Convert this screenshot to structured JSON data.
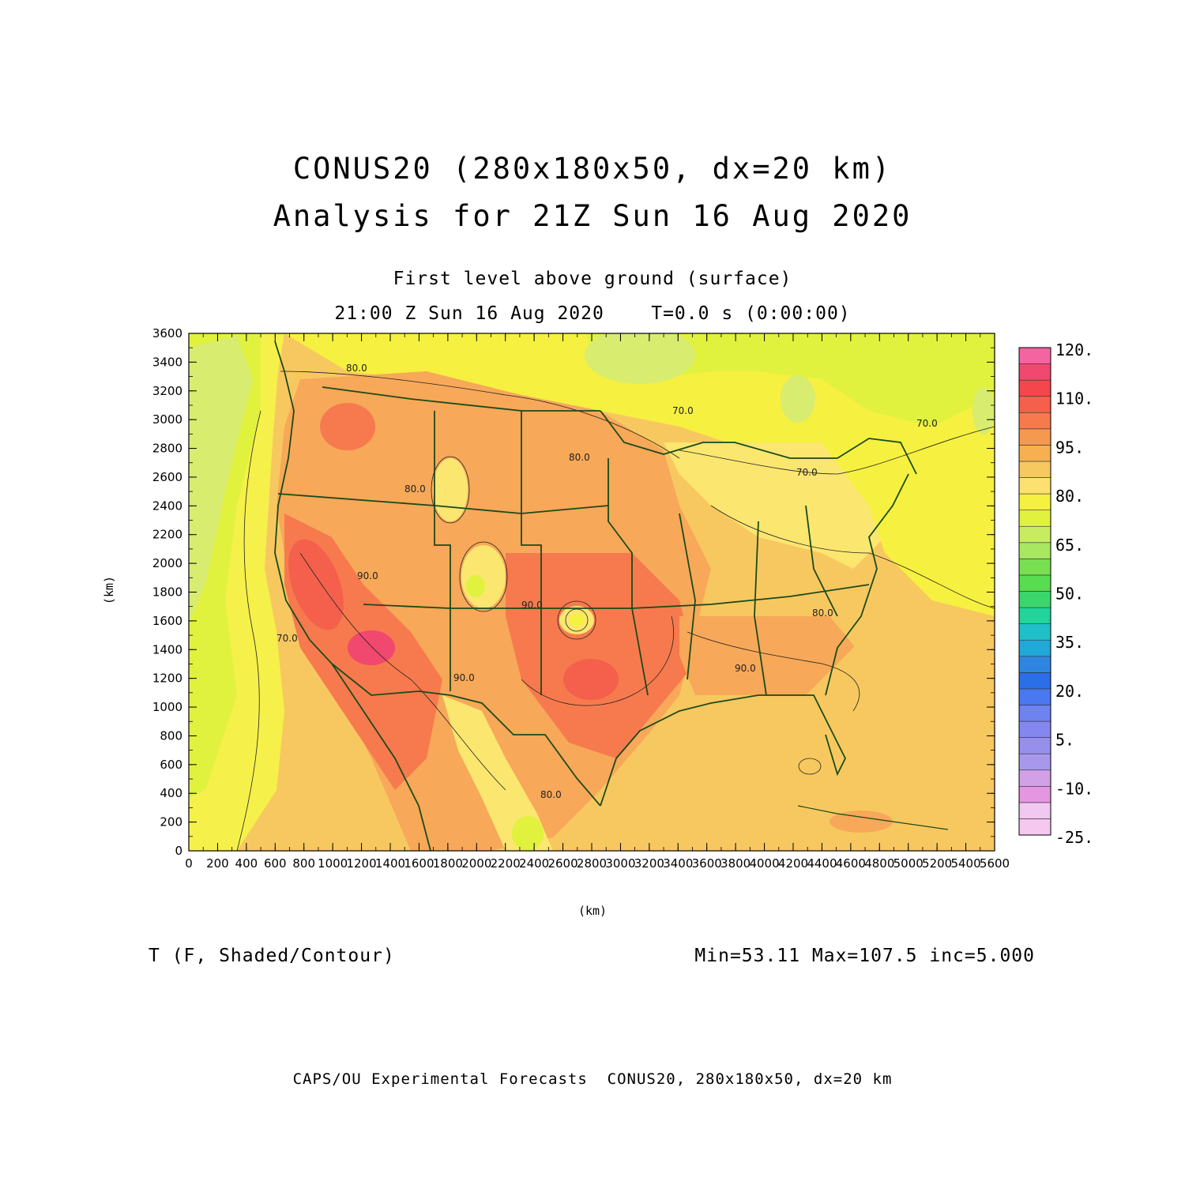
{
  "header": {
    "title_line1": "CONUS20 (280x180x50, dx=20 km)",
    "title_line2": "Analysis for 21Z Sun 16 Aug 2020",
    "subtitle_line1": "First level above ground (surface)",
    "subtitle_line2": "21:00 Z Sun 16 Aug 2020    T=0.0 s (0:00:00)"
  },
  "map": {
    "x_axis_unit": "(km)",
    "y_axis_unit": "(km)",
    "x_ticks": [
      "0",
      "200",
      "400",
      "600",
      "800",
      "1000",
      "1200",
      "1400",
      "1600",
      "1800",
      "2000",
      "2200",
      "2400",
      "2600",
      "2800",
      "3000",
      "3200",
      "3400",
      "3600",
      "3800",
      "4000",
      "4200",
      "4400",
      "4600",
      "4800",
      "5000",
      "5200",
      "5400",
      "5600"
    ],
    "y_ticks": [
      "0",
      "200",
      "400",
      "600",
      "800",
      "1000",
      "1200",
      "1400",
      "1600",
      "1800",
      "2000",
      "2200",
      "2400",
      "2600",
      "2800",
      "3000",
      "3200",
      "3400",
      "3600"
    ],
    "x_range_km": [
      0,
      5600
    ],
    "y_range_km": [
      0,
      3600
    ],
    "contour_labels": [
      "80.0",
      "70.0",
      "80.0",
      "80.0",
      "70.0",
      "70.0",
      "90.0",
      "70.0",
      "90.0",
      "90.0",
      "90.0",
      "80.0",
      "80.0"
    ],
    "boundary_color": "#1a4a1a"
  },
  "colorbar": {
    "labels": [
      "120.",
      "110.",
      "95.",
      "80.",
      "65.",
      "50.",
      "35.",
      "20.",
      "5.",
      "-10.",
      "-25."
    ],
    "colors": [
      "#f5c8f0",
      "#f0c8f0",
      "#e496e0",
      "#d2a0e6",
      "#a898ec",
      "#9690ec",
      "#8488ee",
      "#6e82f0",
      "#4a78f0",
      "#2a6ee8",
      "#2f86e0",
      "#21a8d8",
      "#20c0c8",
      "#20d49a",
      "#3ad66c",
      "#58dc50",
      "#78e050",
      "#a8e860",
      "#c8ec60",
      "#e0f23e",
      "#f6f040",
      "#fce070",
      "#f7c860",
      "#f6b050",
      "#f79850",
      "#f67a4e",
      "#f4604c",
      "#f4464c",
      "#f0486e",
      "#f464a0"
    ]
  },
  "footer": {
    "variable": "T (F, Shaded/Contour)",
    "stats": "Min=53.11 Max=107.5 inc=5.000",
    "credits": "CAPS/OU Experimental Forecasts  CONUS20, 280x180x50, dx=20 km"
  }
}
